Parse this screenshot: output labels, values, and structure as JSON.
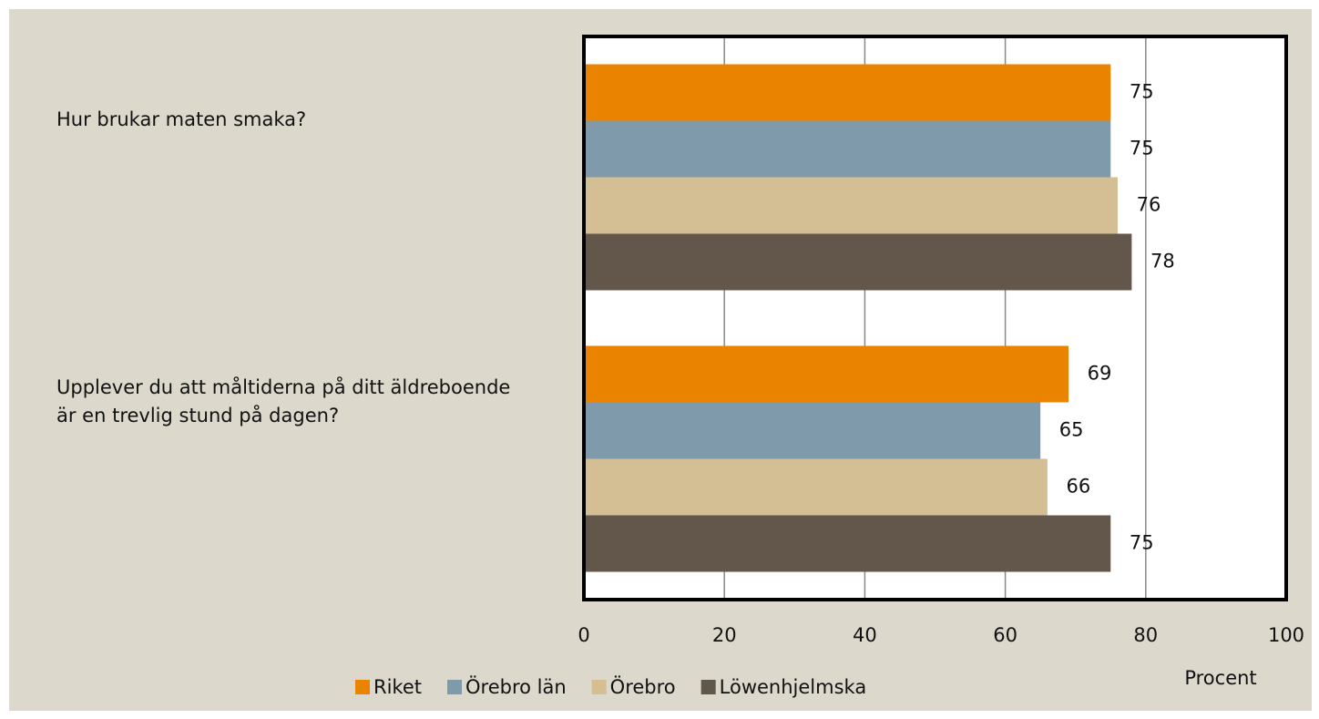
{
  "chart_data": {
    "type": "bar",
    "orientation": "horizontal",
    "categories": [
      "Hur brukar maten smaka?",
      "Upplever du att måltiderna på ditt äldreboende är en trevlig stund på dagen?"
    ],
    "series": [
      {
        "name": "Riket",
        "color": "#e98300",
        "values": [
          75,
          69
        ]
      },
      {
        "name": "Örebro län",
        "color": "#7f9aab",
        "values": [
          75,
          65
        ]
      },
      {
        "name": "Örebro",
        "color": "#d4be94",
        "values": [
          76,
          66
        ]
      },
      {
        "name": "Löwenhjelmska",
        "color": "#63564a",
        "values": [
          78,
          75
        ]
      }
    ],
    "xlabel": "Procent",
    "xlim": [
      0,
      100
    ],
    "xticks": [
      0,
      20,
      40,
      60,
      80,
      100
    ],
    "grid": true,
    "legend": "bottom"
  }
}
